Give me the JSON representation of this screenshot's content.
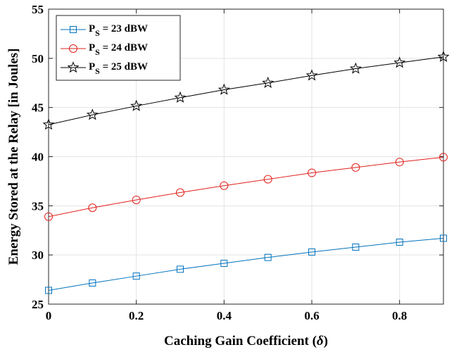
{
  "chart_data": {
    "type": "line",
    "xlabel": "Caching Gain Coefficient (δ)",
    "xlabel_main": "Caching Gain Coefficient (",
    "xlabel_symbol": "δ",
    "xlabel_close": ")",
    "ylabel": "Energy Stored at the Relay [in Joules]",
    "xlim": [
      0,
      0.9
    ],
    "ylim": [
      25,
      55
    ],
    "xticks": [
      0,
      0.2,
      0.4,
      0.6,
      0.8
    ],
    "xtick_labels": [
      "0",
      "0.2",
      "0.4",
      "0.6",
      "0.8"
    ],
    "yticks": [
      25,
      30,
      35,
      40,
      45,
      50,
      55
    ],
    "ytick_labels": [
      "25",
      "30",
      "35",
      "40",
      "45",
      "50",
      "55"
    ],
    "grid": true,
    "legend_position": "top-left",
    "x": [
      0,
      0.1,
      0.2,
      0.3,
      0.4,
      0.5,
      0.6,
      0.7,
      0.8,
      0.9
    ],
    "series": [
      {
        "name": "P_S = 23 dBW",
        "legend_main": "P",
        "legend_sub": "S",
        "legend_rest": " = 23 dBW",
        "color": "#0072BD",
        "marker": "square",
        "values": [
          26.4,
          27.15,
          27.85,
          28.55,
          29.15,
          29.75,
          30.3,
          30.8,
          31.3,
          31.7
        ]
      },
      {
        "name": "P_S = 24 dBW",
        "legend_main": "P",
        "legend_sub": "S",
        "legend_rest": " = 24 dBW",
        "color": "#E0201B",
        "marker": "circle",
        "values": [
          33.9,
          34.8,
          35.6,
          36.35,
          37.05,
          37.7,
          38.35,
          38.9,
          39.45,
          39.95
        ]
      },
      {
        "name": "P_S = 25 dBW",
        "legend_main": "P",
        "legend_sub": "S",
        "legend_rest": " = 25 dBW",
        "color": "#000000",
        "marker": "star",
        "values": [
          43.25,
          44.25,
          45.15,
          46.0,
          46.8,
          47.5,
          48.25,
          48.95,
          49.55,
          50.15
        ]
      }
    ]
  }
}
